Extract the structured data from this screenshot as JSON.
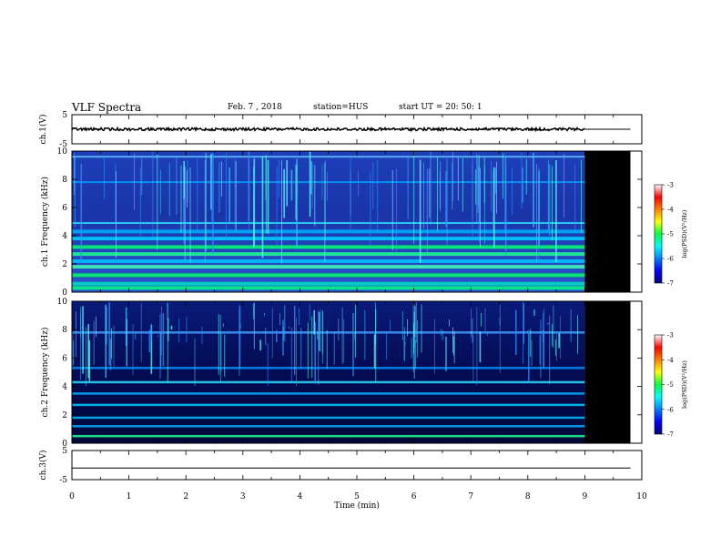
{
  "header": {
    "title": "VLF Spectra",
    "date": "Feb. 7 , 2018",
    "station": "station=HUS",
    "start": "start UT = 20: 50: 1"
  },
  "chart_data": [
    {
      "type": "line",
      "panel": "ch1-waveform",
      "ylabel": "ch.1(V)",
      "ylim": [
        -5,
        5
      ],
      "ytick_labels": [
        "5",
        "-5"
      ],
      "xlim": [
        0,
        10
      ],
      "data_end_min": 9.0,
      "series": [
        {
          "values_approx": 0
        }
      ]
    },
    {
      "type": "heatmap",
      "panel": "ch1-spectrogram",
      "ylabel": "ch.1 Frequency (kHz)",
      "ylim": [
        0,
        10
      ],
      "ytick_labels": [
        "0",
        "2",
        "4",
        "6",
        "8",
        "10"
      ],
      "xlim": [
        0,
        10
      ],
      "data_end_min": 9.0,
      "blank_region_min": [
        9.0,
        9.8
      ],
      "horizontal_bands_kHz": [
        0.3,
        0.6,
        1.2,
        1.8,
        2.2,
        2.7,
        3.2,
        3.8,
        4.3,
        4.9,
        7.8,
        9.6
      ],
      "colorbar": {
        "label": "log(PSD)(V²/Hz)",
        "min": -7,
        "max": -3,
        "ticks": [
          "-3",
          "-4",
          "-5",
          "-6",
          "-7"
        ]
      }
    },
    {
      "type": "heatmap",
      "panel": "ch2-spectrogram",
      "ylabel": "ch.2 Frequency (kHz)",
      "ylim": [
        0,
        10
      ],
      "ytick_labels": [
        "0",
        "2",
        "4",
        "6",
        "8",
        "10"
      ],
      "xlim": [
        0,
        10
      ],
      "data_end_min": 9.0,
      "blank_region_min": [
        9.0,
        9.8
      ],
      "horizontal_bands_kHz": [
        0.5,
        1.2,
        1.8,
        2.7,
        3.5,
        4.3,
        5.3,
        7.8
      ],
      "colorbar": {
        "label": "log(PSD)(V²/Hz)",
        "min": -7,
        "max": -3,
        "ticks": [
          "-3",
          "-4",
          "-5",
          "-6",
          "-7"
        ]
      }
    },
    {
      "type": "line",
      "panel": "ch3-waveform",
      "ylabel": "ch.3(V)",
      "ylim": [
        -5,
        5
      ],
      "ytick_labels": [
        "5",
        "-5"
      ],
      "xlim": [
        0,
        10
      ],
      "series": [
        {
          "values_approx": -1
        }
      ]
    }
  ],
  "xaxis": {
    "label": "Time (min)",
    "ticks": [
      "0",
      "1",
      "2",
      "3",
      "4",
      "5",
      "6",
      "7",
      "8",
      "9",
      "10"
    ]
  }
}
